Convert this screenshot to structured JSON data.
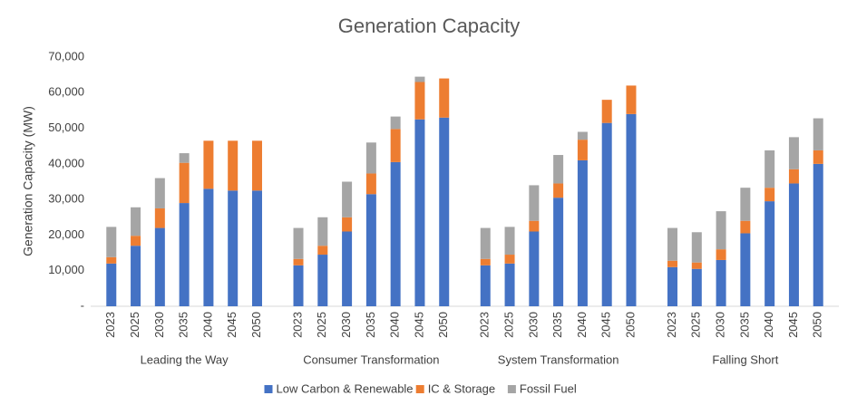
{
  "chart_data": {
    "type": "stacked-bar",
    "title": "Generation Capacity",
    "y_label": "Generation Capacity (MW)",
    "groups": [
      "Leading the Way",
      "Consumer Transformation",
      "System Transformation",
      "Falling Short"
    ],
    "categories": [
      "2023",
      "2025",
      "2030",
      "2035",
      "2040",
      "2045",
      "2050",
      "2023",
      "2025",
      "2030",
      "2035",
      "2040",
      "2045",
      "2050",
      "2023",
      "2025",
      "2030",
      "2035",
      "2040",
      "2045",
      "2050",
      "2023",
      "2025",
      "2030",
      "2035",
      "2040",
      "2045",
      "2050"
    ],
    "series": [
      {
        "name": "Low Carbon & Renewable",
        "color": "#4472c4",
        "values": [
          12000,
          17000,
          22000,
          29000,
          33000,
          32500,
          32500,
          11500,
          14500,
          21000,
          31500,
          40500,
          52500,
          53000,
          11500,
          12000,
          21000,
          30500,
          41000,
          51500,
          54000,
          11000,
          10500,
          13000,
          20500,
          29500,
          34500,
          40000
        ]
      },
      {
        "name": "IC & Storage",
        "color": "#ed7d31",
        "values": [
          1800,
          2800,
          5500,
          11300,
          13500,
          14000,
          14000,
          1800,
          2500,
          4000,
          5800,
          9300,
          10500,
          11000,
          1800,
          2500,
          3000,
          4000,
          5800,
          6500,
          8000,
          1800,
          1800,
          3000,
          3500,
          3800,
          4000,
          3800
        ]
      },
      {
        "name": "Fossil Fuel",
        "color": "#a5a5a5",
        "values": [
          8500,
          8000,
          8500,
          2700,
          0,
          0,
          0,
          8700,
          8000,
          10000,
          8700,
          3500,
          1500,
          0,
          8700,
          7800,
          10000,
          8000,
          2200,
          0,
          0,
          9200,
          8500,
          10700,
          9300,
          10500,
          9000,
          9000
        ]
      }
    ],
    "ylim": [
      0,
      70000
    ],
    "yticks": [
      {
        "value": 0,
        "label": "-"
      },
      {
        "value": 10000,
        "label": "10,000"
      },
      {
        "value": 20000,
        "label": "20,000"
      },
      {
        "value": 30000,
        "label": "30,000"
      },
      {
        "value": 40000,
        "label": "40,000"
      },
      {
        "value": 50000,
        "label": "50,000"
      },
      {
        "value": 60000,
        "label": "60,000"
      },
      {
        "value": 70000,
        "label": "70,000"
      }
    ],
    "grid": false,
    "legend": "bottom"
  }
}
